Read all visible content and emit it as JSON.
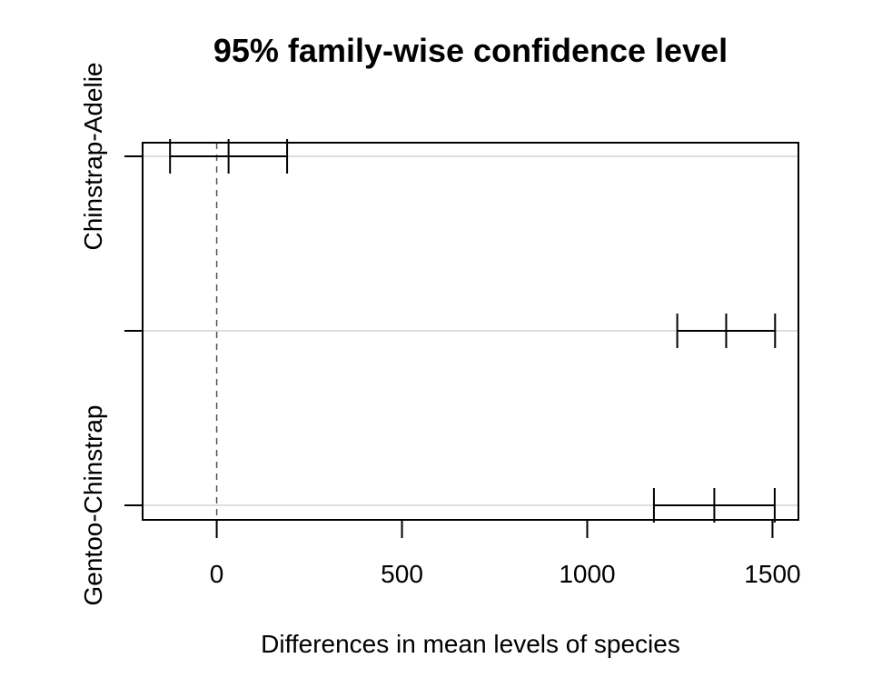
{
  "chart_data": {
    "type": "errorbar",
    "title": "95% family-wise confidence level",
    "xlabel": "Differences in mean levels of species",
    "ylabel": "",
    "xlim": [
      -200,
      1570
    ],
    "xticks": [
      0,
      500,
      1000,
      1500
    ],
    "xtick_labels": [
      "0",
      "500",
      "1000",
      "1500"
    ],
    "reference_line": 0,
    "grid": "horizontal",
    "comparisons": [
      {
        "label": "Chinstrap-Adelie",
        "diff": 32,
        "lwr": -126,
        "upr": 190
      },
      {
        "label": "",
        "diff": 1375,
        "lwr": 1243,
        "upr": 1507
      },
      {
        "label": "Gentoo-Chinstrap",
        "diff": 1343,
        "lwr": 1180,
        "upr": 1506
      }
    ]
  }
}
